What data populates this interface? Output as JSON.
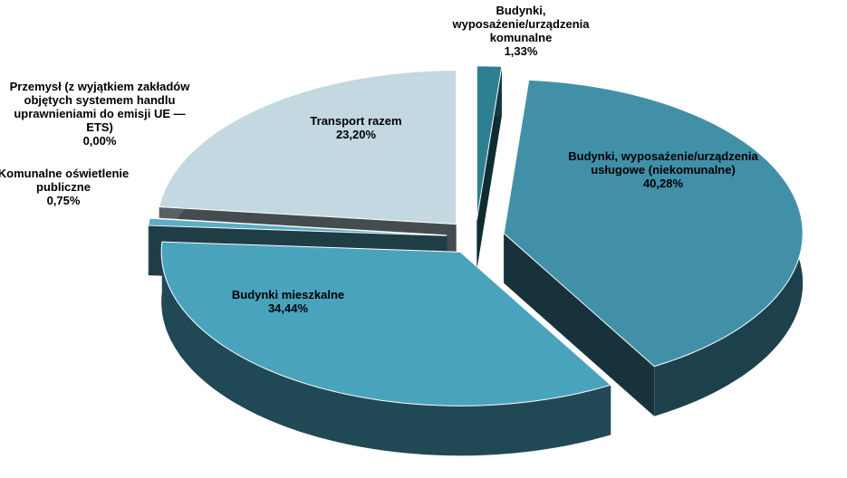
{
  "chart_data": {
    "type": "pie3d",
    "categories": [
      "Budynki, wyposażenie/urządzenia komunalne",
      "Budynki, wyposażenie/urządzenia usługowe (niekomunalne)",
      "Budynki mieszkalne",
      "Komunalne oświetlenie publiczne",
      "Przemysł (z wyjątkiem zakładów objętych systemem handlu uprawnieniami do emisji UE — ETS)",
      "Transport razem"
    ],
    "values": [
      1.33,
      40.28,
      34.44,
      0.75,
      0.0,
      23.2
    ],
    "value_labels": [
      "1,33%",
      "40,28%",
      "34,44%",
      "0,75%",
      "0,00%",
      "23,20%"
    ],
    "colors": [
      "#2f7f93",
      "#4190a8",
      "#4aa3bd",
      "#5aaec6",
      "#5a646e",
      "#c3d8e1"
    ]
  }
}
